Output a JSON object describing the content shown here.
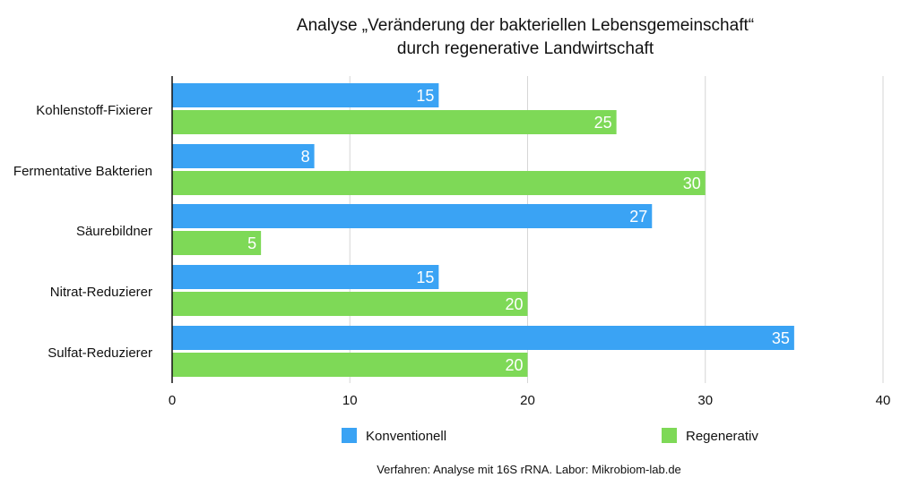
{
  "chart_data": {
    "type": "bar",
    "orientation": "horizontal",
    "title_lines": [
      "Analyse „Veränderung der bakteriellen Lebensgemeinschaft“",
      "durch regenerative Landwirtschaft"
    ],
    "categories": [
      "Kohlenstoff-Fixierer",
      "Fermentative Bakterien",
      "Säurebildner",
      "Nitrat-Reduzierer",
      "Sulfat-Reduzierer"
    ],
    "series": [
      {
        "name": "Konventionell",
        "color": "#3aa3f4",
        "values": [
          15,
          8,
          27,
          15,
          35
        ]
      },
      {
        "name": "Regenerativ",
        "color": "#7ed957",
        "values": [
          25,
          30,
          5,
          20,
          20
        ]
      }
    ],
    "xlim": [
      0,
      40
    ],
    "xticks": [
      0,
      10,
      20,
      30,
      40
    ],
    "grid": true,
    "legend_position": "bottom",
    "footnote": "Verfahren: Analyse mit 16S rRNA. Labor: Mikrobiom-lab.de"
  }
}
